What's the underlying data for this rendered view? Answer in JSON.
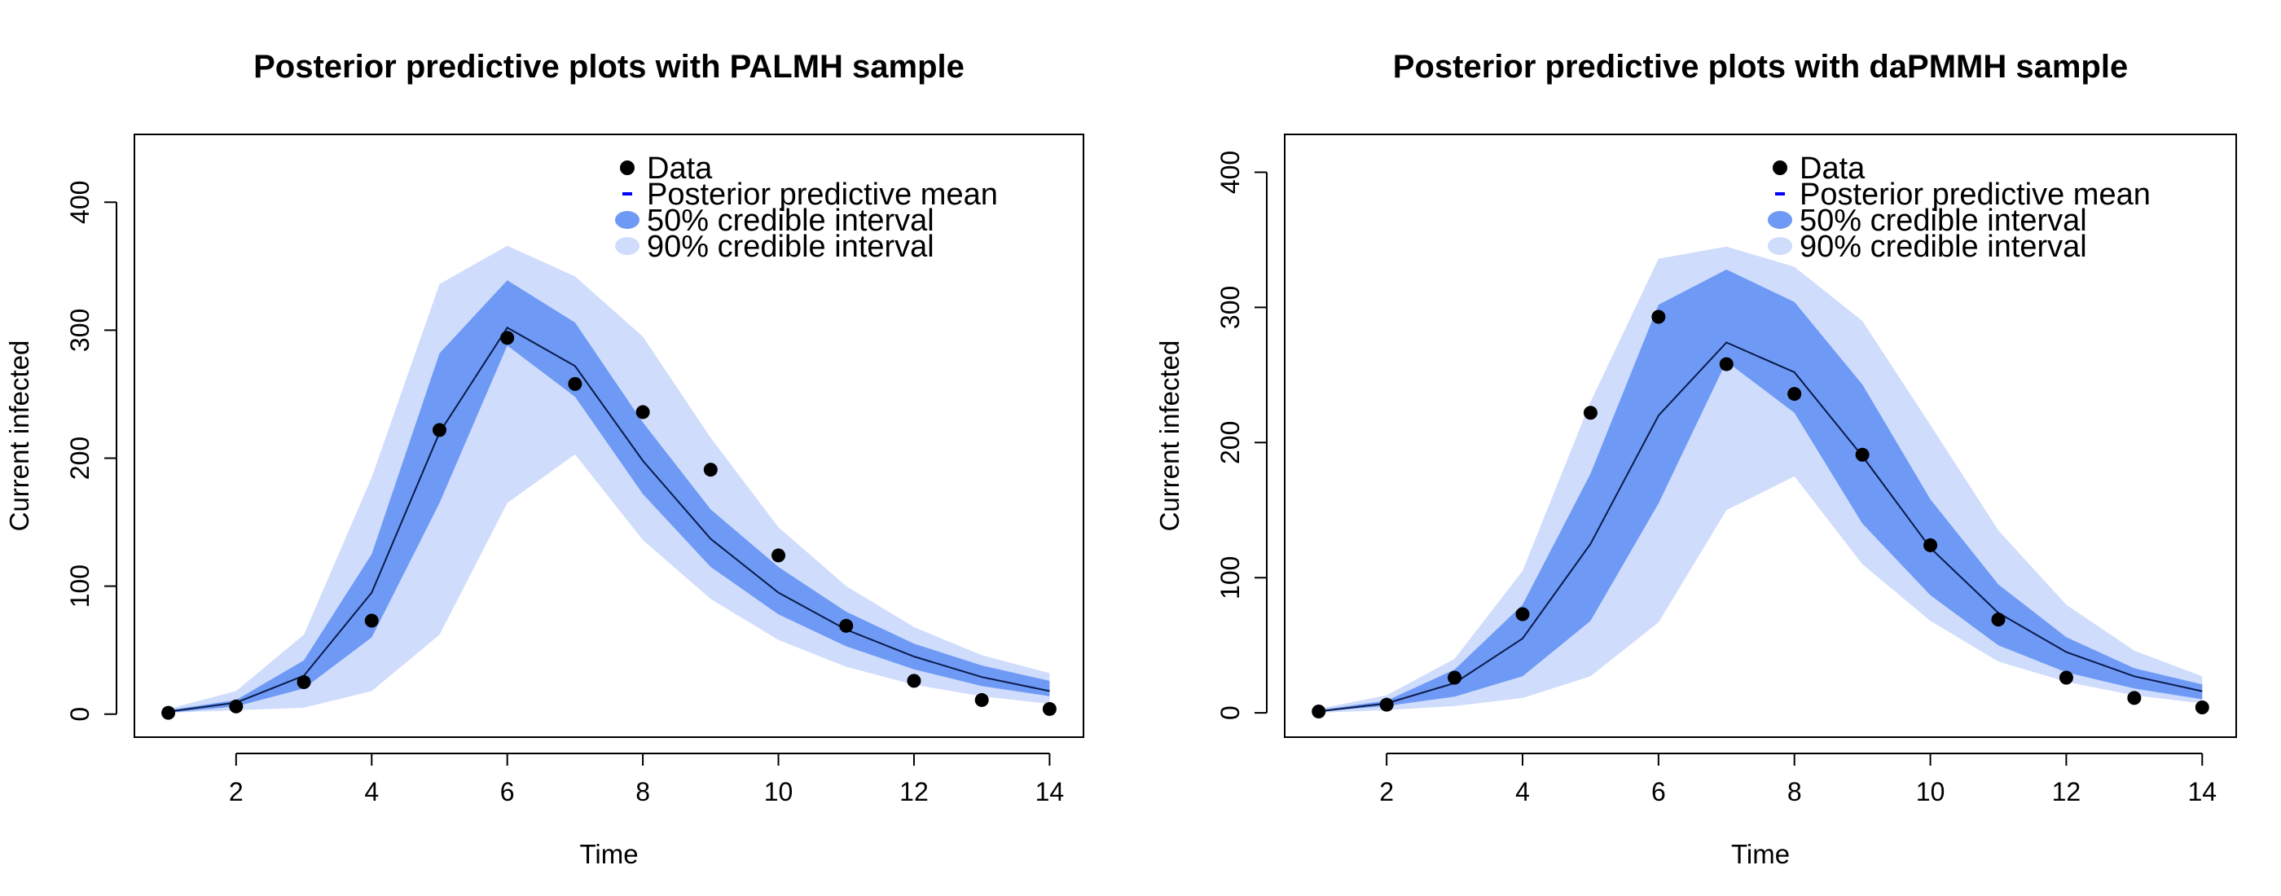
{
  "colors": {
    "ci90": "#cfdcfb",
    "ci50": "#6e9af5",
    "mean_line": "#0b1a4a",
    "legend_mean": "#0000ff",
    "data_point": "#000000"
  },
  "chart_data": [
    {
      "type": "line",
      "title": "Posterior predictive plots with PALMH sample",
      "xlabel": "Time",
      "ylabel": "Current infected",
      "xlim": [
        0.5,
        14.5
      ],
      "ylim": [
        -18,
        453
      ],
      "xticks": [
        2,
        4,
        6,
        8,
        10,
        12,
        14
      ],
      "yticks": [
        0,
        100,
        200,
        300,
        400
      ],
      "legend": {
        "position": "top-right",
        "entries": [
          "Data",
          "Posterior predictive mean",
          "50% credible interval",
          "90% credible interval"
        ]
      },
      "x": [
        1,
        2,
        3,
        4,
        5,
        6,
        7,
        8,
        9,
        10,
        11,
        12,
        13,
        14
      ],
      "series": [
        {
          "name": "Data",
          "values": [
            1,
            6,
            25,
            73,
            222,
            294,
            258,
            236,
            191,
            124,
            69,
            26,
            11,
            4
          ]
        },
        {
          "name": "Posterior predictive mean",
          "values": [
            2,
            9,
            30,
            95,
            220,
            302,
            272,
            198,
            137,
            95,
            66,
            45,
            29,
            18
          ]
        },
        {
          "name": "50% lower",
          "values": [
            1,
            6,
            20,
            60,
            165,
            288,
            248,
            172,
            115,
            78,
            53,
            35,
            22,
            14
          ]
        },
        {
          "name": "50% upper",
          "values": [
            3,
            11,
            42,
            125,
            282,
            339,
            306,
            228,
            160,
            115,
            80,
            55,
            38,
            26
          ]
        },
        {
          "name": "90% lower",
          "values": [
            1,
            3,
            5,
            18,
            62,
            165,
            203,
            136,
            90,
            58,
            37,
            23,
            14,
            8
          ]
        },
        {
          "name": "90% upper",
          "values": [
            4,
            18,
            62,
            185,
            336,
            366,
            342,
            295,
            216,
            146,
            100,
            68,
            46,
            32
          ]
        }
      ]
    },
    {
      "type": "line",
      "title": "Posterior predictive plots with daPMMH sample",
      "xlabel": "Time",
      "ylabel": "Current infected",
      "xlim": [
        0.5,
        14.5
      ],
      "ylim": [
        -18,
        428
      ],
      "xticks": [
        2,
        4,
        6,
        8,
        10,
        12,
        14
      ],
      "yticks": [
        0,
        100,
        200,
        300,
        400
      ],
      "legend": {
        "position": "top-right",
        "entries": [
          "Data",
          "Posterior predictive mean",
          "50% credible interval",
          "90% credible interval"
        ]
      },
      "x": [
        1,
        2,
        3,
        4,
        5,
        6,
        7,
        8,
        9,
        10,
        11,
        12,
        13,
        14
      ],
      "series": [
        {
          "name": "Data",
          "values": [
            1,
            6,
            26,
            73,
            222,
            293,
            258,
            236,
            191,
            124,
            69,
            26,
            11,
            4
          ]
        },
        {
          "name": "Posterior predictive mean",
          "values": [
            1,
            7,
            22,
            55,
            125,
            220,
            274,
            252,
            190,
            122,
            74,
            45,
            27,
            16
          ]
        },
        {
          "name": "50% lower",
          "values": [
            1,
            5,
            12,
            27,
            68,
            155,
            260,
            222,
            140,
            87,
            50,
            30,
            18,
            10
          ]
        },
        {
          "name": "50% upper",
          "values": [
            2,
            9,
            32,
            80,
            177,
            302,
            328,
            304,
            243,
            158,
            95,
            56,
            33,
            21
          ]
        },
        {
          "name": "90% lower",
          "values": [
            0,
            2,
            5,
            11,
            27,
            67,
            150,
            175,
            110,
            68,
            38,
            23,
            13,
            7
          ]
        },
        {
          "name": "90% upper",
          "values": [
            3,
            13,
            40,
            105,
            230,
            336,
            345,
            330,
            290,
            213,
            135,
            80,
            46,
            27
          ]
        }
      ]
    }
  ]
}
